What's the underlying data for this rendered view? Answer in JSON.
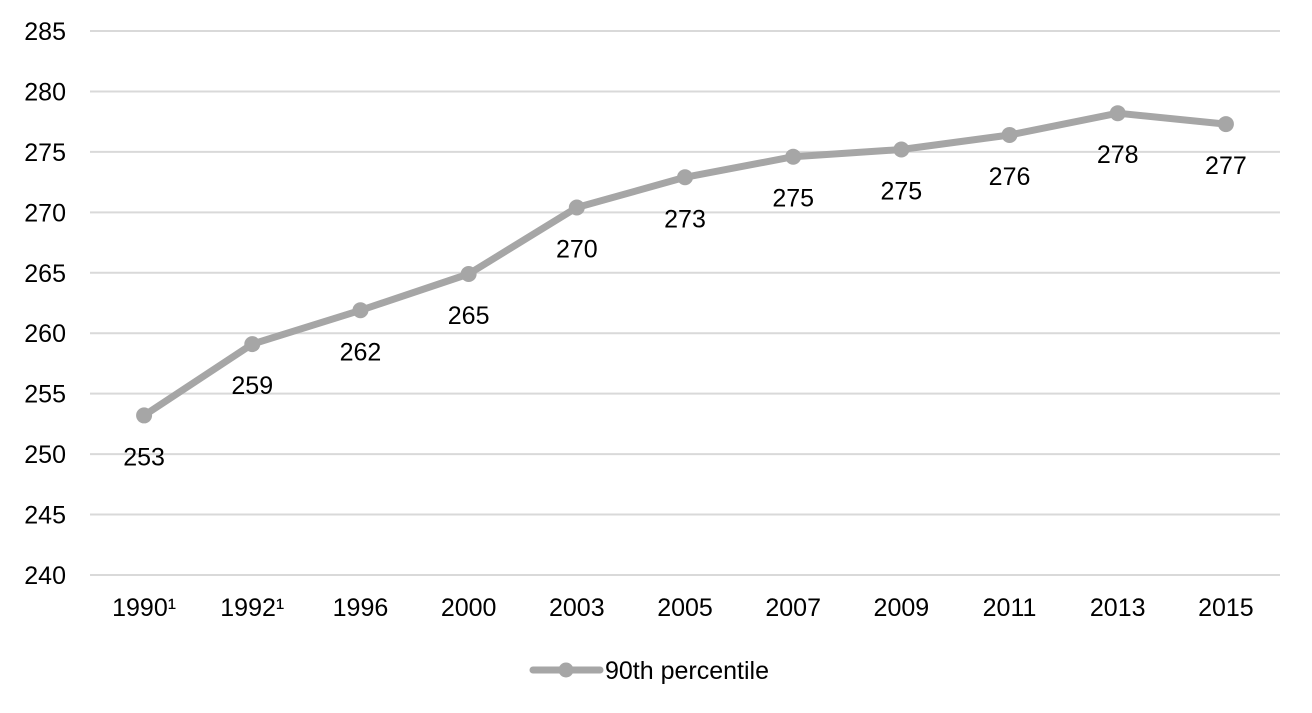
{
  "chart_data": {
    "type": "line",
    "categories": [
      "1990¹",
      "1992¹",
      "1996",
      "2000",
      "2003",
      "2005",
      "2007",
      "2009",
      "2011",
      "2013",
      "2015"
    ],
    "series": [
      {
        "name": "90th percentile",
        "values": [
          253.2,
          259.1,
          261.9,
          264.9,
          270.4,
          272.9,
          274.6,
          275.2,
          276.4,
          278.2,
          277.3
        ],
        "labels": [
          "253",
          "259",
          "262",
          "265",
          "270",
          "273",
          "275",
          "275",
          "276",
          "278",
          "277"
        ],
        "color": "#a6a6a6"
      }
    ],
    "ylim": [
      240,
      285
    ],
    "yticks": [
      240,
      245,
      250,
      255,
      260,
      265,
      270,
      275,
      280,
      285
    ],
    "grid": true,
    "legend_position": "bottom"
  }
}
